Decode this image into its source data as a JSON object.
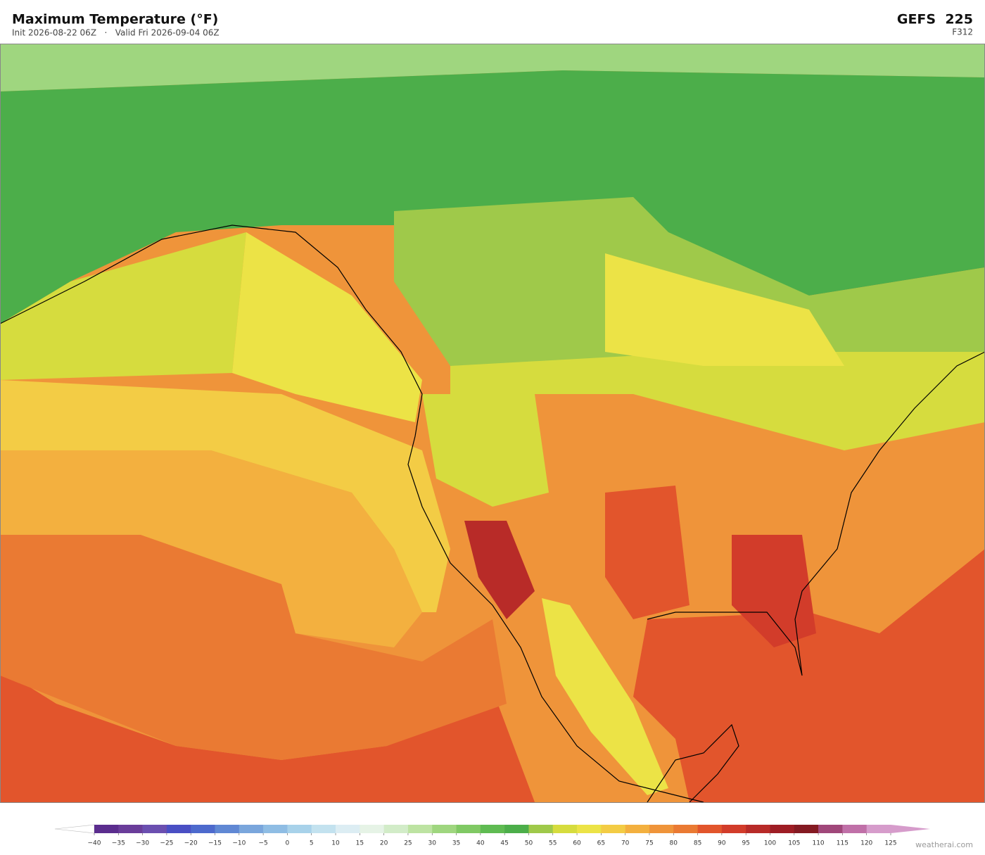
{
  "header": {
    "title": "Maximum Temperature  (°F)",
    "subtitle": "Init 2026-08-22 06Z   ·   Valid Fri 2026-09-04 06Z",
    "model": "GEFS  225",
    "forecast": "F312"
  },
  "colorbar": {
    "ticks": [
      {
        "value": -40,
        "label": "−40"
      },
      {
        "value": -35,
        "label": "−35"
      },
      {
        "value": -30,
        "label": "−30"
      },
      {
        "value": -25,
        "label": "−25"
      },
      {
        "value": -20,
        "label": "−20"
      },
      {
        "value": -15,
        "label": "−15"
      },
      {
        "value": -10,
        "label": "−10"
      },
      {
        "value": -5,
        "label": "−5"
      },
      0,
      5,
      10,
      15,
      20,
      25,
      30,
      35,
      40,
      45,
      50,
      55,
      60,
      65,
      70,
      75,
      80,
      85,
      90,
      95,
      100,
      105,
      110,
      115,
      120,
      125
    ],
    "colors": [
      "#5b2d8e",
      "#6a3d9a",
      "#6b4fb0",
      "#4a4fc4",
      "#4d6acd",
      "#6088d4",
      "#7aa6dc",
      "#8fbde4",
      "#a8d2ea",
      "#c3e2ef",
      "#dcedf3",
      "#e6f3e6",
      "#d2ecc8",
      "#bde3a2",
      "#9fd67f",
      "#80c964",
      "#5fbb52",
      "#4cae4a",
      "#9fc94a",
      "#d6dc3e",
      "#ece346",
      "#f3cc45",
      "#f3b03f",
      "#ef943a",
      "#ea7a33",
      "#e2552c",
      "#d23c2a",
      "#b82b28",
      "#9e1d24",
      "#841a22",
      "#a0477a",
      "#c070a8",
      "#d69ccb"
    ],
    "under_color": "#ffffff",
    "over_color": "#d69ccb"
  },
  "credit": "weatherai.com"
}
